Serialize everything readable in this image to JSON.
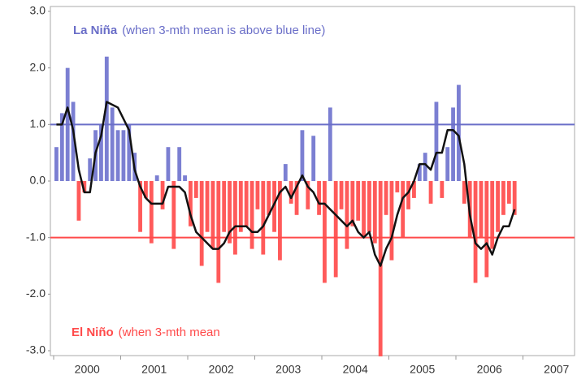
{
  "chart_data": {
    "type": "bar-line",
    "annotations": [
      {
        "title": "La Niña",
        "text": "(when 3-mth mean is above blue line)"
      },
      {
        "title": "El Niño",
        "text": "(when 3-mth mean"
      }
    ],
    "year_labels": [
      "2000",
      "2001",
      "2002",
      "2003",
      "2004",
      "2005",
      "2006",
      "2007"
    ],
    "categories": [
      null,
      null,
      null,
      null,
      null,
      null,
      null,
      null,
      null,
      null,
      null,
      null,
      null,
      null,
      null,
      null,
      null,
      null,
      null,
      null,
      null,
      null,
      null,
      null,
      null,
      null,
      null,
      null,
      null,
      null,
      null,
      null,
      null,
      null,
      null,
      null,
      null,
      null,
      null,
      null,
      null,
      null,
      null,
      null,
      null,
      null,
      null,
      null,
      null,
      null,
      null,
      null,
      null,
      null,
      null,
      null,
      null,
      null,
      null,
      null,
      null,
      null,
      null,
      null,
      null,
      null,
      null,
      null,
      null,
      null,
      null,
      null,
      null,
      null,
      null,
      null,
      null,
      null,
      null,
      null,
      null,
      null,
      null,
      null
    ],
    "series": [
      {
        "type": "bar",
        "color_positive": "#7b7fd2",
        "color_negative": "#ff5a5a",
        "values": [
          0.6,
          1.2,
          2.0,
          1.4,
          -0.7,
          -0.2,
          0.4,
          0.9,
          1.0,
          2.2,
          1.3,
          0.9,
          0.9,
          1.0,
          0.5,
          -0.9,
          -0.3,
          -1.1,
          0.1,
          -0.5,
          0.6,
          -1.2,
          0.6,
          0.1,
          -0.8,
          -0.3,
          -1.5,
          -0.9,
          -1.2,
          -1.8,
          -0.9,
          -1.1,
          -1.3,
          -0.9,
          -0.8,
          -1.2,
          -0.5,
          -1.3,
          -0.6,
          -0.9,
          -1.4,
          0.3,
          -0.4,
          -0.6,
          0.9,
          -0.5,
          0.8,
          -0.6,
          -1.8,
          1.3,
          -1.7,
          -0.5,
          -1.2,
          -0.8,
          -0.7,
          -1.0,
          -0.9,
          -1.1,
          -3.1,
          -0.6,
          -1.4,
          -0.2,
          -1.0,
          -0.5,
          -0.3,
          0.3,
          0.5,
          -0.4,
          1.4,
          -0.3,
          0.6,
          1.3,
          1.7,
          -0.4,
          -1.0,
          -1.8,
          -1.0,
          -1.7,
          -1.2,
          -0.9,
          -0.6,
          -0.4,
          -0.6,
          null
        ]
      },
      {
        "type": "line",
        "color": "#111111",
        "values": [
          1.0,
          1.0,
          1.3,
          0.9,
          0.2,
          -0.2,
          -0.2,
          0.5,
          0.8,
          1.4,
          1.35,
          1.3,
          1.1,
          0.9,
          0.2,
          -0.1,
          -0.3,
          -0.4,
          -0.4,
          -0.4,
          -0.1,
          -0.1,
          -0.1,
          -0.2,
          -0.6,
          -0.9,
          -1.0,
          -1.1,
          -1.2,
          -1.2,
          -1.1,
          -0.9,
          -0.8,
          -0.8,
          -0.8,
          -0.9,
          -0.9,
          -0.8,
          -0.6,
          -0.4,
          -0.2,
          -0.1,
          -0.3,
          -0.1,
          0.1,
          -0.1,
          -0.2,
          -0.4,
          -0.4,
          -0.5,
          -0.6,
          -0.7,
          -0.8,
          -0.7,
          -0.9,
          -1.0,
          -0.9,
          -1.3,
          -1.5,
          -1.2,
          -1.0,
          -0.6,
          -0.3,
          -0.2,
          0.0,
          0.3,
          0.3,
          0.2,
          0.5,
          0.5,
          0.9,
          0.9,
          0.8,
          0.3,
          -0.6,
          -1.1,
          -1.2,
          -1.1,
          -1.3,
          -1.0,
          -0.8,
          -0.8,
          -0.5,
          null
        ]
      }
    ],
    "reference_lines": [
      {
        "value": 1,
        "color": "#6a6ec8"
      },
      {
        "value": -1,
        "color": "#ff4a4a"
      }
    ],
    "ylim": [
      -3,
      3
    ],
    "yticks": [
      {
        "value": 3,
        "label": "3.0"
      },
      {
        "value": 2,
        "label": "2.0"
      },
      {
        "value": 1,
        "label": "1.0"
      },
      {
        "value": 0,
        "label": "0.0"
      },
      {
        "value": -1,
        "label": "-1.0"
      },
      {
        "value": -2,
        "label": "-2.0"
      },
      {
        "value": -3,
        "label": "-3.0"
      }
    ]
  }
}
